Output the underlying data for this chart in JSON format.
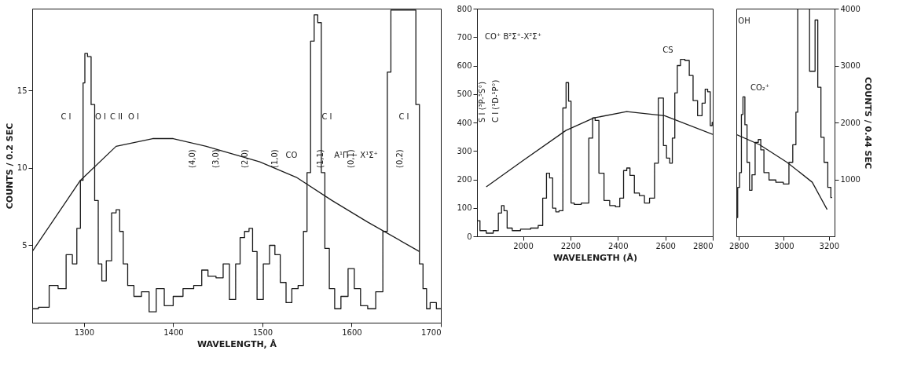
{
  "chart_data": [
    {
      "type": "step",
      "xlabel": "WAVELENGTH, Å",
      "ylabel": "COUNTS / 0.2 SEC",
      "xlim": [
        1242,
        1700
      ],
      "ylim": [
        0,
        20.3
      ],
      "xticks": [
        1300,
        1400,
        1500,
        1600,
        1700
      ],
      "yticks": [
        5,
        10,
        15
      ],
      "grid": false,
      "legend": false,
      "series": [
        {
          "color": "#1a1a1a",
          "x": [
            1242,
            1256,
            1266,
            1276,
            1284,
            1290,
            1294,
            1298,
            1300,
            1302,
            1306,
            1310,
            1314,
            1318,
            1322,
            1328,
            1334,
            1338,
            1342,
            1346,
            1352,
            1360,
            1369,
            1377,
            1385,
            1395,
            1405,
            1417,
            1429,
            1435,
            1443,
            1453,
            1459,
            1467,
            1473,
            1477,
            1483,
            1487,
            1491,
            1497,
            1505,
            1511,
            1517,
            1523,
            1530,
            1536,
            1544,
            1548,
            1552,
            1556,
            1560,
            1564,
            1568,
            1572,
            1578,
            1584,
            1592,
            1600,
            1606,
            1614,
            1622,
            1632,
            1638,
            1642,
            1646,
            1670,
            1674,
            1678,
            1682,
            1686,
            1690,
            1700
          ],
          "values": [
            0.9,
            1.0,
            2.4,
            2.2,
            4.4,
            3.8,
            6.1,
            9.2,
            15.5,
            17.4,
            17.2,
            14.1,
            7.9,
            3.8,
            2.7,
            4.0,
            7.1,
            7.3,
            5.9,
            3.8,
            2.4,
            1.7,
            2.0,
            0.7,
            2.2,
            1.1,
            1.7,
            2.2,
            2.4,
            3.4,
            3.0,
            2.9,
            3.8,
            1.5,
            3.8,
            5.5,
            5.9,
            6.1,
            4.6,
            1.5,
            3.8,
            5.0,
            4.4,
            2.6,
            1.3,
            2.2,
            2.4,
            5.9,
            9.7,
            18.2,
            19.9,
            19.4,
            9.7,
            4.8,
            2.2,
            0.9,
            1.7,
            3.5,
            2.2,
            1.1,
            0.9,
            2.0,
            5.9,
            16.2,
            20.2,
            20.2,
            14.1,
            3.8,
            2.2,
            0.9,
            1.3,
            0.9
          ]
        },
        {
          "type": "line",
          "color": "#1a1a1a",
          "x": [
            1242,
            1296,
            1336,
            1377,
            1400,
            1437,
            1497,
            1538,
            1578,
            1618,
            1676
          ],
          "values": [
            4.6,
            9.2,
            11.4,
            11.9,
            11.9,
            11.4,
            10.4,
            9.4,
            7.9,
            6.5,
            4.6
          ]
        }
      ],
      "annotations": [
        "C I",
        "O I",
        "C II",
        "O I",
        "C I",
        "C I",
        "CO",
        "A¹Π − X¹Σ⁺",
        "(4,0)",
        "(3,0)",
        "(2,0)",
        "(1,0)",
        "(1,1)",
        "(0,1)",
        "(0,2)"
      ]
    },
    {
      "type": "step",
      "xlabel": "WAVELENGTH (Å)",
      "xlim": [
        1806,
        2800
      ],
      "ylim": [
        0,
        800
      ],
      "xticks": [
        2000,
        2200,
        2400,
        2600,
        2800
      ],
      "yticks": [
        0,
        100,
        200,
        300,
        400,
        500,
        600,
        700,
        800
      ],
      "grid": false,
      "legend": false,
      "series": [
        {
          "color": "#1a1a1a",
          "x": [
            1808,
            1829,
            1861,
            1888,
            1904,
            1915,
            1925,
            1941,
            1968,
            2011,
            2053,
            2075,
            2091,
            2107,
            2117,
            2133,
            2144,
            2160,
            2176,
            2187,
            2197,
            2208,
            2224,
            2267,
            2288,
            2299,
            2309,
            2331,
            2352,
            2379,
            2400,
            2416,
            2432,
            2443,
            2459,
            2480,
            2501,
            2523,
            2544,
            2565,
            2576,
            2587,
            2597,
            2613,
            2624,
            2635,
            2645,
            2656,
            2672,
            2693,
            2709,
            2725,
            2747,
            2763,
            2773,
            2784,
            2795,
            2800
          ],
          "values": [
            55,
            20,
            11,
            20,
            82,
            108,
            90,
            29,
            20,
            25,
            29,
            38,
            134,
            222,
            205,
            99,
            86,
            90,
            451,
            540,
            475,
            117,
            112,
            117,
            345,
            416,
            407,
            222,
            126,
            108,
            104,
            134,
            231,
            240,
            214,
            152,
            143,
            117,
            134,
            257,
            486,
            486,
            319,
            275,
            257,
            345,
            504,
            600,
            622,
            618,
            565,
            477,
            424,
            468,
            517,
            508,
            389,
            400
          ]
        },
        {
          "type": "line",
          "color": "#1a1a1a",
          "x": [
            1845,
            2000,
            2181,
            2299,
            2437,
            2597,
            2800
          ],
          "values": [
            174,
            266,
            372,
            416,
            438,
            424,
            358
          ]
        }
      ],
      "annotations": [
        "CO⁺ B²Σ⁺-X²Σ⁺",
        "CS",
        "S I (³P-⁵S°)",
        "C I (¹D-¹P°)"
      ]
    },
    {
      "type": "step",
      "xlim": [
        2789,
        3225
      ],
      "y2lim": [
        0,
        4000
      ],
      "xticks": [
        2800,
        3000,
        3200
      ],
      "y2ticks": [
        1000,
        2000,
        3000,
        4000
      ],
      "y2label": "COUNTS / 0.44 SEC",
      "grid": false,
      "legend": false,
      "series": [
        {
          "axis": "y2",
          "color": "#1a1a1a",
          "x": [
            2792,
            2798,
            2809,
            2814,
            2823,
            2831,
            2842,
            2853,
            2864,
            2881,
            2892,
            2903,
            2920,
            2948,
            2981,
            3014,
            3031,
            3048,
            3059,
            3064,
            3110,
            3118,
            3135,
            3142,
            3159,
            3170,
            3187,
            3203,
            3214
          ],
          "values": [
            330,
            860,
            1120,
            2140,
            2450,
            1960,
            1300,
            810,
            1080,
            1650,
            1700,
            1520,
            1120,
            990,
            950,
            920,
            1300,
            1610,
            2180,
            4000,
            4000,
            2900,
            2900,
            3800,
            2620,
            1740,
            1300,
            860,
            680
          ]
        },
        {
          "type": "line",
          "axis": "y2",
          "color": "#1a1a1a",
          "x": [
            2789,
            2892,
            3014,
            3126,
            3192
          ],
          "values": [
            1790,
            1610,
            1300,
            950,
            470
          ]
        }
      ],
      "annotations": [
        "OH",
        "CO₂⁺"
      ]
    }
  ]
}
